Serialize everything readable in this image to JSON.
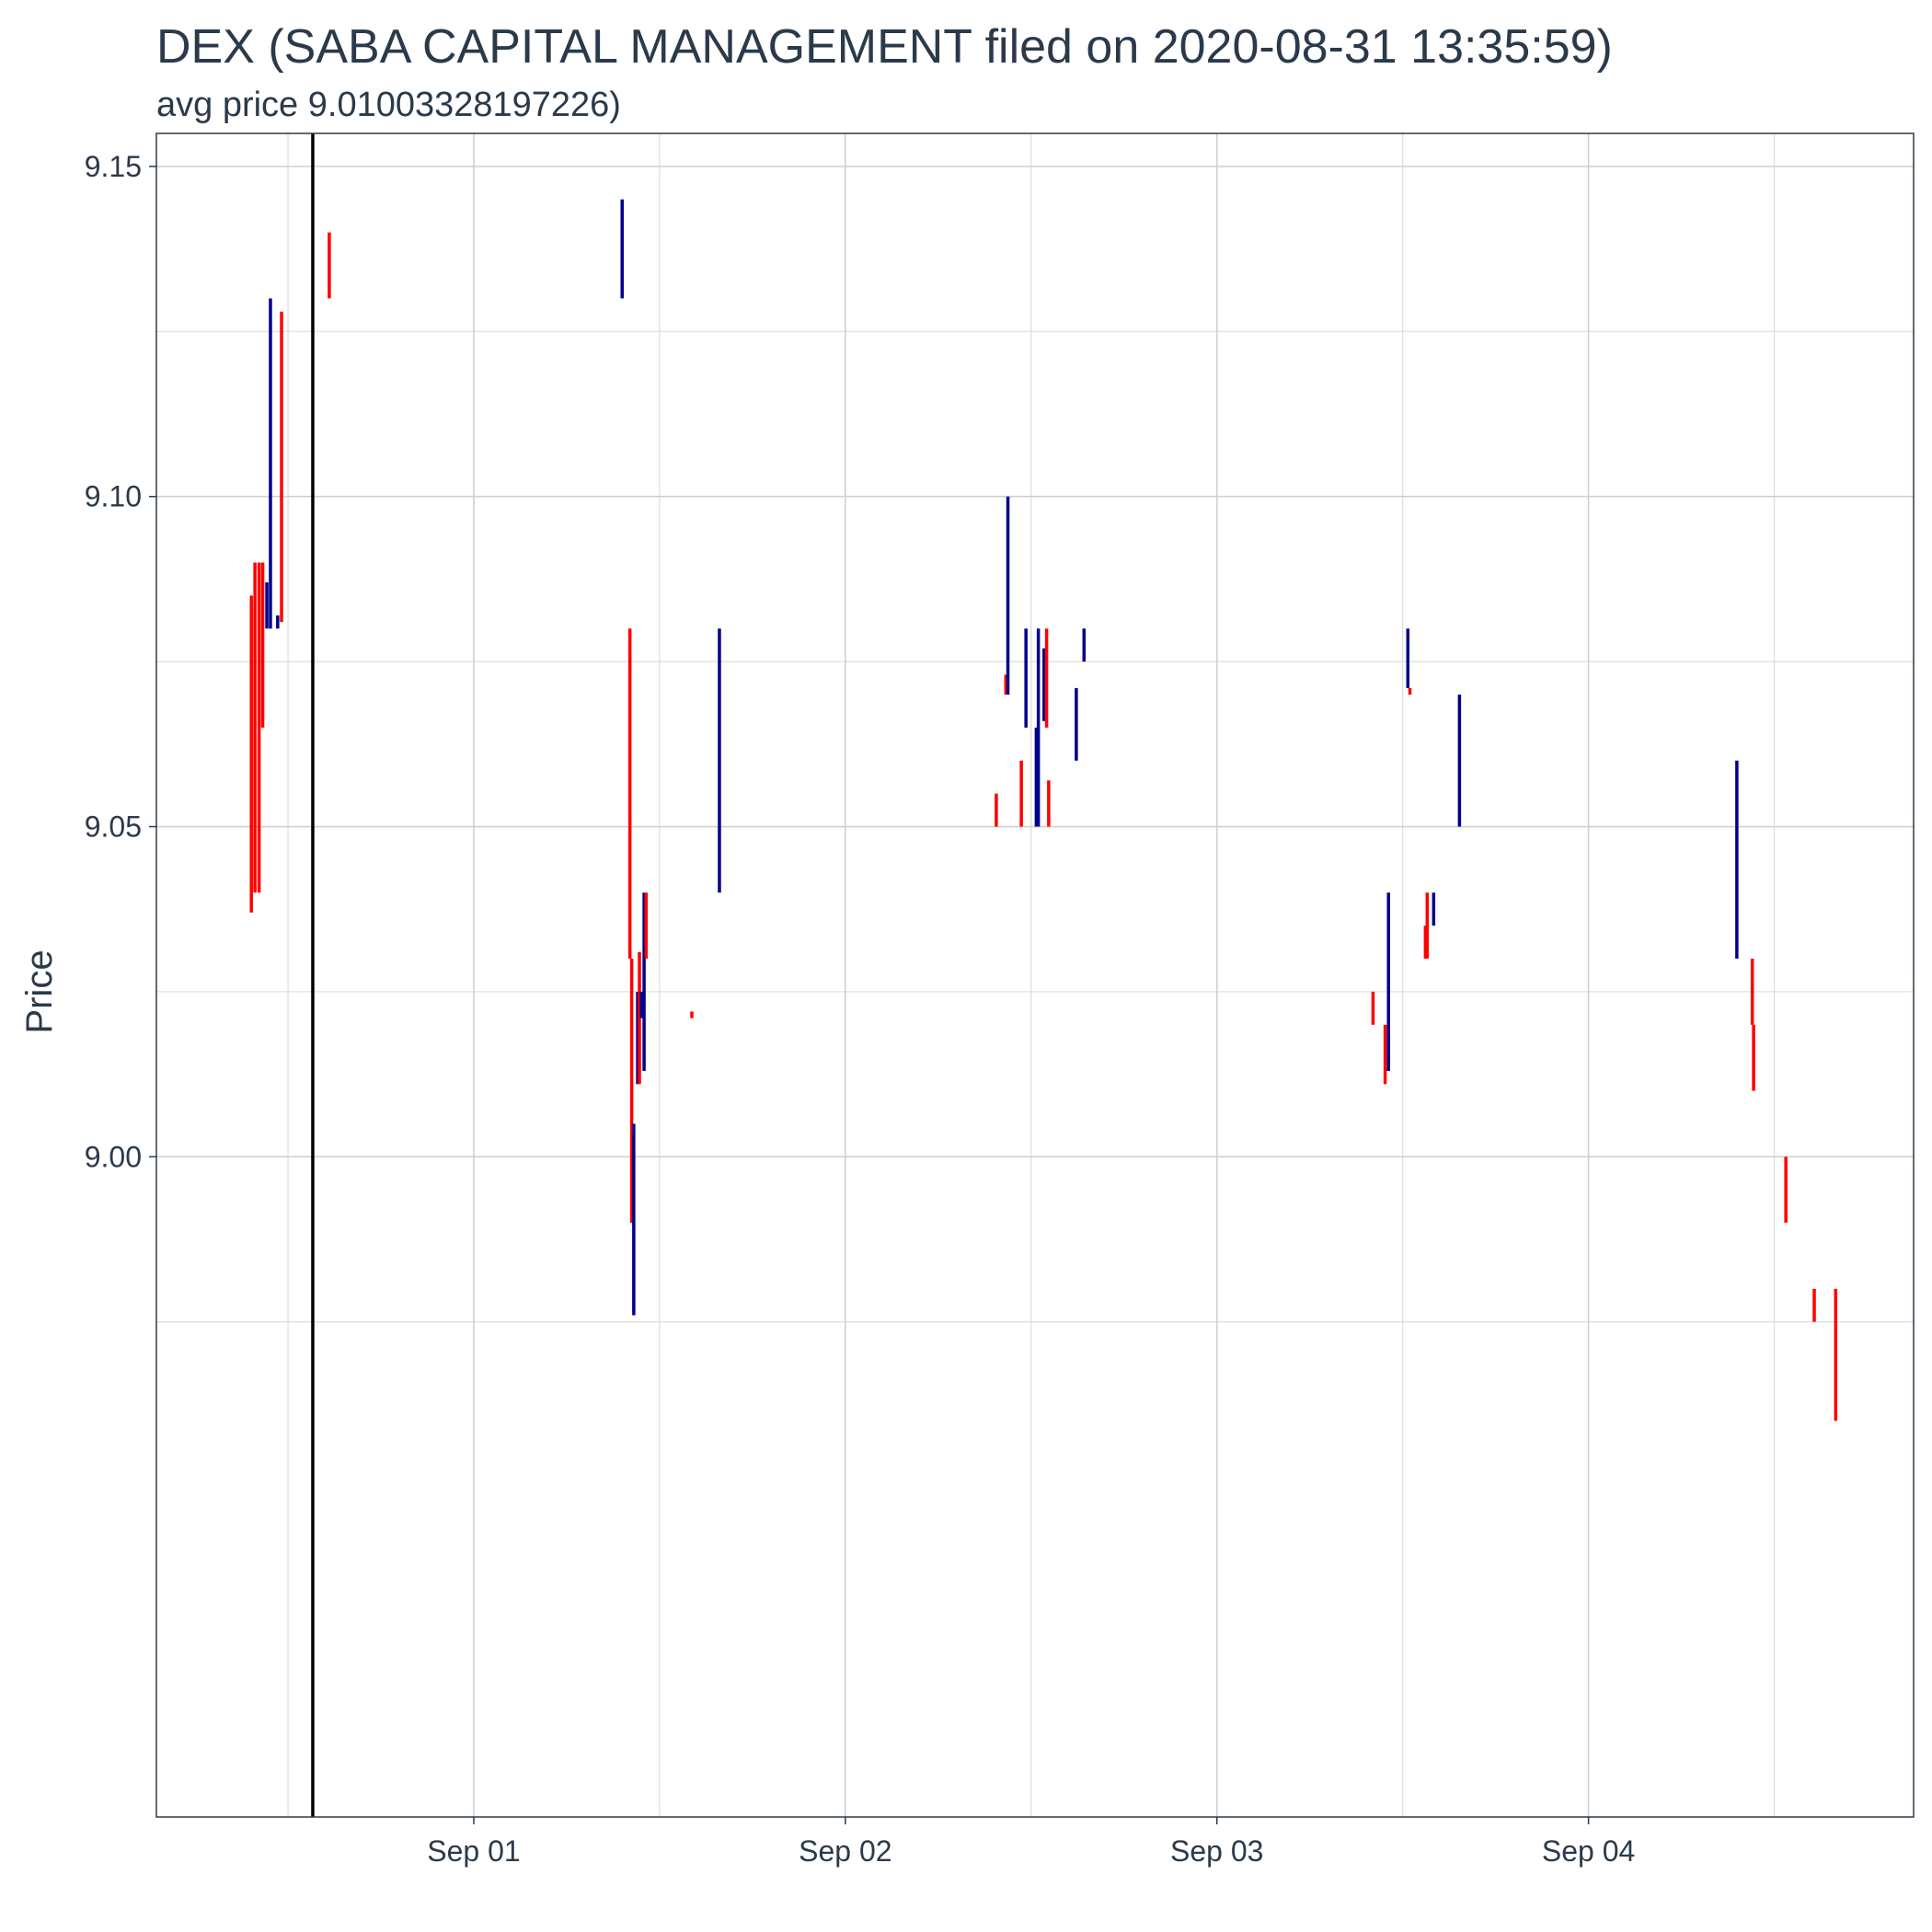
{
  "chart_data": {
    "type": "candlestick",
    "title": "DEX (SABA CAPITAL MANAGEMENT filed on 2020-08-31 13:35:59)",
    "subtitle": "avg price 9.01003328197226)",
    "xlabel": "",
    "ylabel": "Price",
    "ylim": [
      8.9,
      9.155
    ],
    "xlim": [
      "2020-08-31 03:30",
      "2020-09-04 21:00"
    ],
    "y_ticks": [
      {
        "value": 9.0,
        "label": "9.00"
      },
      {
        "value": 9.05,
        "label": "9.05"
      },
      {
        "value": 9.1,
        "label": "9.10"
      },
      {
        "value": 9.15,
        "label": "9.15"
      }
    ],
    "y_minor_ticks": [
      8.975,
      9.025,
      9.075,
      9.125
    ],
    "x_ticks": [
      {
        "value": "2020-09-01 00:00",
        "label": "Sep 01"
      },
      {
        "value": "2020-09-02 00:00",
        "label": "Sep 02"
      },
      {
        "value": "2020-09-03 00:00",
        "label": "Sep 03"
      },
      {
        "value": "2020-09-04 00:00",
        "label": "Sep 04"
      }
    ],
    "x_minor_ticks": [
      "2020-08-31 12:00",
      "2020-09-01 12:00",
      "2020-09-02 12:00",
      "2020-09-03 12:00",
      "2020-09-04 12:00"
    ],
    "filing_marker": "2020-08-31 13:35:59",
    "grid": true,
    "colors": {
      "up": "#00008b",
      "down": "#ff0000",
      "marker": "#000000"
    },
    "candles": [
      {
        "t": "2020-08-31 09:38",
        "high": 9.085,
        "low": 9.037,
        "dir": "down"
      },
      {
        "t": "2020-08-31 09:52",
        "high": 9.09,
        "low": 9.04,
        "dir": "down"
      },
      {
        "t": "2020-08-31 10:08",
        "high": 9.09,
        "low": 9.04,
        "dir": "down"
      },
      {
        "t": "2020-08-31 10:22",
        "high": 9.09,
        "low": 9.065,
        "dir": "down"
      },
      {
        "t": "2020-08-31 10:38",
        "high": 9.087,
        "low": 9.08,
        "dir": "up"
      },
      {
        "t": "2020-08-31 10:52",
        "high": 9.13,
        "low": 9.08,
        "dir": "up"
      },
      {
        "t": "2020-08-31 11:20",
        "high": 9.082,
        "low": 9.08,
        "dir": "up"
      },
      {
        "t": "2020-08-31 11:35",
        "high": 9.128,
        "low": 9.081,
        "dir": "down"
      },
      {
        "t": "2020-08-31 14:40",
        "high": 9.14,
        "low": 9.13,
        "dir": "down"
      },
      {
        "t": "2020-09-01 09:35",
        "high": 9.145,
        "low": 9.13,
        "dir": "up"
      },
      {
        "t": "2020-09-01 10:05",
        "high": 9.08,
        "low": 9.03,
        "dir": "down"
      },
      {
        "t": "2020-09-01 10:12",
        "high": 9.03,
        "low": 8.99,
        "dir": "down"
      },
      {
        "t": "2020-09-01 10:20",
        "high": 9.005,
        "low": 8.976,
        "dir": "up"
      },
      {
        "t": "2020-09-01 10:35",
        "high": 9.025,
        "low": 9.011,
        "dir": "up"
      },
      {
        "t": "2020-09-01 10:42",
        "high": 9.031,
        "low": 9.011,
        "dir": "down"
      },
      {
        "t": "2020-09-01 10:50",
        "high": 9.025,
        "low": 9.021,
        "dir": "up"
      },
      {
        "t": "2020-09-01 11:00",
        "high": 9.04,
        "low": 9.013,
        "dir": "up"
      },
      {
        "t": "2020-09-01 11:08",
        "high": 9.04,
        "low": 9.03,
        "dir": "down"
      },
      {
        "t": "2020-09-01 14:05",
        "high": 9.022,
        "low": 9.021,
        "dir": "down"
      },
      {
        "t": "2020-09-01 15:52",
        "high": 9.08,
        "low": 9.04,
        "dir": "up"
      },
      {
        "t": "2020-09-02 09:45",
        "high": 9.055,
        "low": 9.05,
        "dir": "down"
      },
      {
        "t": "2020-09-02 10:22",
        "high": 9.073,
        "low": 9.07,
        "dir": "down"
      },
      {
        "t": "2020-09-02 10:30",
        "high": 9.1,
        "low": 9.07,
        "dir": "up"
      },
      {
        "t": "2020-09-02 11:22",
        "high": 9.06,
        "low": 9.05,
        "dir": "down"
      },
      {
        "t": "2020-09-02 11:40",
        "high": 9.08,
        "low": 9.065,
        "dir": "up"
      },
      {
        "t": "2020-09-02 12:20",
        "high": 9.065,
        "low": 9.05,
        "dir": "up"
      },
      {
        "t": "2020-09-02 12:28",
        "high": 9.08,
        "low": 9.05,
        "dir": "up"
      },
      {
        "t": "2020-09-02 12:50",
        "high": 9.077,
        "low": 9.066,
        "dir": "up"
      },
      {
        "t": "2020-09-02 13:00",
        "high": 9.08,
        "low": 9.065,
        "dir": "down"
      },
      {
        "t": "2020-09-02 13:08",
        "high": 9.057,
        "low": 9.05,
        "dir": "down"
      },
      {
        "t": "2020-09-02 14:55",
        "high": 9.071,
        "low": 9.06,
        "dir": "up"
      },
      {
        "t": "2020-09-02 15:25",
        "high": 9.08,
        "low": 9.075,
        "dir": "up"
      },
      {
        "t": "2020-09-03 10:05",
        "high": 9.025,
        "low": 9.02,
        "dir": "down"
      },
      {
        "t": "2020-09-03 10:52",
        "high": 9.02,
        "low": 9.011,
        "dir": "down"
      },
      {
        "t": "2020-09-03 11:05",
        "high": 9.04,
        "low": 9.013,
        "dir": "up"
      },
      {
        "t": "2020-09-03 12:20",
        "high": 9.08,
        "low": 9.071,
        "dir": "up"
      },
      {
        "t": "2020-09-03 12:28",
        "high": 9.071,
        "low": 9.07,
        "dir": "down"
      },
      {
        "t": "2020-09-03 13:28",
        "high": 9.035,
        "low": 9.03,
        "dir": "down"
      },
      {
        "t": "2020-09-03 13:35",
        "high": 9.04,
        "low": 9.03,
        "dir": "down"
      },
      {
        "t": "2020-09-03 14:00",
        "high": 9.04,
        "low": 9.035,
        "dir": "up"
      },
      {
        "t": "2020-09-03 15:40",
        "high": 9.07,
        "low": 9.05,
        "dir": "up"
      },
      {
        "t": "2020-09-04 09:35",
        "high": 9.06,
        "low": 9.03,
        "dir": "up"
      },
      {
        "t": "2020-09-04 10:35",
        "high": 9.03,
        "low": 9.02,
        "dir": "down"
      },
      {
        "t": "2020-09-04 10:40",
        "high": 9.02,
        "low": 9.01,
        "dir": "down"
      },
      {
        "t": "2020-09-04 12:45",
        "high": 9.0,
        "low": 8.99,
        "dir": "down"
      },
      {
        "t": "2020-09-04 14:35",
        "high": 8.98,
        "low": 8.975,
        "dir": "down"
      },
      {
        "t": "2020-09-04 15:58",
        "high": 8.98,
        "low": 8.96,
        "dir": "down"
      }
    ]
  }
}
